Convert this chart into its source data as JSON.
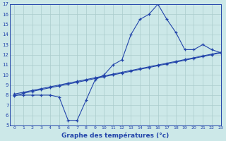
{
  "xlabel": "Graphe des températures (°c)",
  "xlim": [
    -0.5,
    23
  ],
  "ylim": [
    5,
    17
  ],
  "xticks": [
    0,
    1,
    2,
    3,
    4,
    5,
    6,
    7,
    8,
    9,
    10,
    11,
    12,
    13,
    14,
    15,
    16,
    17,
    18,
    19,
    20,
    21,
    22,
    23
  ],
  "yticks": [
    5,
    6,
    7,
    8,
    9,
    10,
    11,
    12,
    13,
    14,
    15,
    16,
    17
  ],
  "bg_color": "#cce8e8",
  "line_color": "#2244aa",
  "grid_color": "#aacccc",
  "line1_x": [
    0,
    1,
    2,
    3,
    4,
    5,
    6,
    7,
    8,
    9,
    10,
    11,
    12,
    13,
    14,
    15,
    16,
    17,
    18,
    19,
    20,
    21,
    22,
    23
  ],
  "line1_y": [
    8,
    8,
    8,
    8,
    8,
    7.8,
    5.5,
    5.5,
    7.5,
    9.5,
    10,
    11,
    11.5,
    14,
    15.5,
    16,
    17,
    15.5,
    14.2,
    12.5,
    12.5,
    13,
    12.5,
    12.2
  ],
  "line2_x": [
    0,
    1,
    2,
    3,
    4,
    5,
    6,
    7,
    8,
    9,
    10,
    11,
    12,
    13,
    14,
    15,
    16,
    17,
    18,
    19,
    20,
    21,
    22,
    23
  ],
  "line2_y": [
    7.9,
    8.18,
    8.37,
    8.55,
    8.73,
    8.91,
    9.09,
    9.27,
    9.45,
    9.64,
    9.82,
    10.0,
    10.18,
    10.36,
    10.55,
    10.73,
    10.91,
    11.09,
    11.27,
    11.45,
    11.64,
    11.82,
    12.0,
    12.18
  ],
  "line3_x": [
    0,
    1,
    2,
    3,
    4,
    5,
    6,
    7,
    8,
    9,
    10,
    11,
    12,
    13,
    14,
    15,
    16,
    17,
    18,
    19,
    20,
    21,
    22,
    23
  ],
  "line3_y": [
    8.1,
    8.28,
    8.46,
    8.64,
    8.82,
    9.0,
    9.18,
    9.36,
    9.54,
    9.72,
    9.9,
    10.08,
    10.26,
    10.44,
    10.62,
    10.8,
    10.98,
    11.16,
    11.34,
    11.52,
    11.7,
    11.88,
    12.06,
    12.24
  ]
}
